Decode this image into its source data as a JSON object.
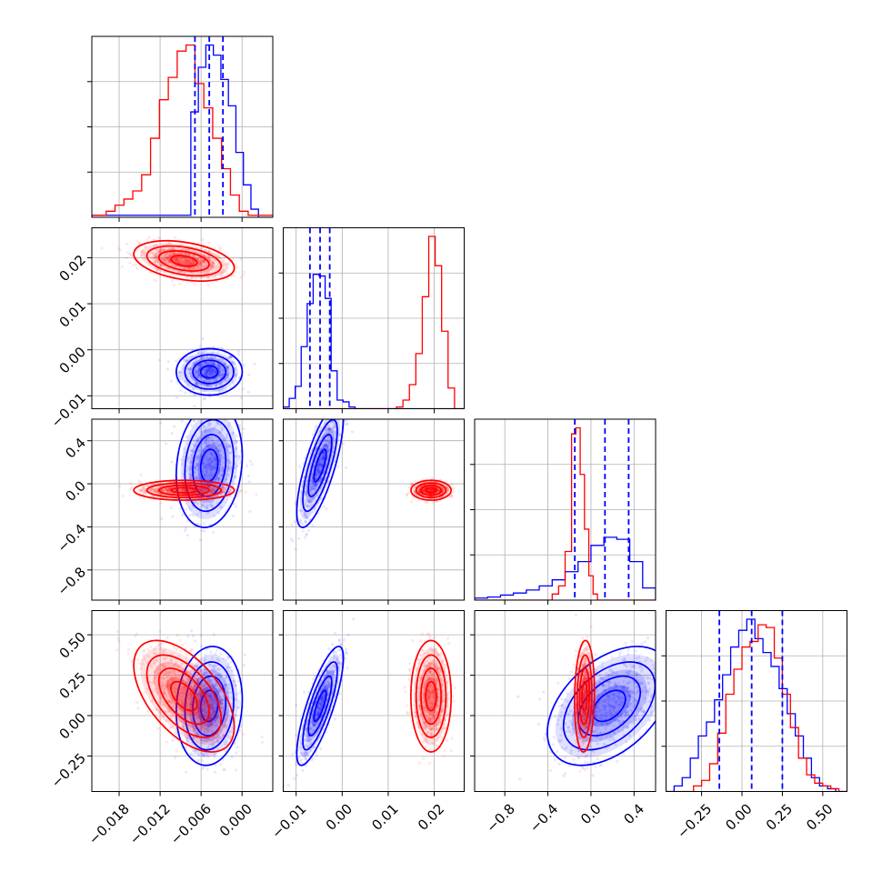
{
  "chart_data": {
    "type": "corner",
    "title": "",
    "grid": true,
    "colors": {
      "series_a": "#0000ff",
      "series_b": "#ff0000"
    },
    "params": [
      {
        "xlim": [
          -0.022,
          0.0045
        ],
        "ticks": [
          -0.018,
          -0.012,
          -0.006,
          0.0
        ],
        "tick_labels": [
          "−0.018",
          "−0.012",
          "−0.006",
          "0.000"
        ]
      },
      {
        "xlim": [
          -0.0128,
          0.0265
        ],
        "ticks": [
          -0.01,
          0.0,
          0.01,
          0.02
        ],
        "tick_labels": [
          "−0.01",
          "0.00",
          "0.01",
          "0.02"
        ]
      },
      {
        "xlim": [
          -1.08,
          0.6
        ],
        "ticks": [
          -0.8,
          -0.4,
          0.0,
          0.4
        ],
        "tick_labels": [
          "−0.8",
          "−0.4",
          "0.0",
          "0.4"
        ]
      },
      {
        "xlim": [
          -0.47,
          0.65
        ],
        "ticks": [
          -0.25,
          0.0,
          0.25,
          0.5
        ],
        "tick_labels": [
          "−0.25",
          "0.00",
          "0.25",
          "0.50"
        ]
      }
    ],
    "series": [
      {
        "name": "",
        "color": "#0000ff",
        "quantiles": [
          [
            -0.0069,
            -0.0048,
            -0.0028
          ],
          [
            -0.007,
            -0.0048,
            -0.0027
          ],
          [
            -0.15,
            0.13,
            0.35
          ],
          [
            -0.14,
            0.06,
            0.25
          ]
        ],
        "means": [
          -0.0048,
          -0.0048,
          0.17,
          0.06
        ],
        "sds": [
          0.0021,
          0.0022,
          0.25,
          0.16
        ],
        "corr": [
          [
            1,
            0.0,
            0.15,
            0.1
          ],
          [
            0.0,
            1,
            0.75,
            0.8
          ],
          [
            0.15,
            0.75,
            1,
            0.45
          ],
          [
            0.1,
            0.8,
            0.45,
            1
          ]
        ],
        "hist": [
          {
            "edges": [
              -0.022,
              -0.0075,
              -0.0064,
              -0.0053,
              -0.0042,
              -0.0031,
              -0.002,
              -0.0009,
              0.0002,
              0.0013,
              0.0024,
              0.0045
            ],
            "counts": [
              0.01,
              0.52,
              0.74,
              0.85,
              0.8,
              0.68,
              0.55,
              0.32,
              0.16,
              0.04,
              0.0
            ]
          },
          {
            "edges": [
              -0.0128,
              -0.0115,
              -0.0102,
              -0.0089,
              -0.0076,
              -0.0063,
              -0.005,
              -0.0037,
              -0.0024,
              -0.0011,
              0.0002,
              0.0015,
              0.0028,
              0.0265
            ],
            "counts": [
              0.01,
              0.06,
              0.13,
              0.36,
              0.61,
              0.78,
              0.77,
              0.64,
              0.22,
              0.05,
              0.04,
              0.01,
              0.0
            ]
          },
          {
            "edges": [
              -1.08,
              -0.96,
              -0.84,
              -0.72,
              -0.6,
              -0.48,
              -0.36,
              -0.24,
              -0.12,
              0.0,
              0.12,
              0.24,
              0.36,
              0.48,
              0.6
            ],
            "counts": [
              0.01,
              0.015,
              0.025,
              0.035,
              0.05,
              0.07,
              0.1,
              0.14,
              0.19,
              0.27,
              0.31,
              0.3,
              0.19,
              0.06
            ]
          },
          {
            "edges": [
              -0.47,
              -0.42,
              -0.37,
              -0.32,
              -0.27,
              -0.22,
              -0.17,
              -0.12,
              -0.07,
              -0.02,
              0.03,
              0.08,
              0.13,
              0.18,
              0.23,
              0.28,
              0.33,
              0.38,
              0.43,
              0.48,
              0.53,
              0.58,
              0.65
            ],
            "counts": [
              0.0,
              0.02,
              0.05,
              0.12,
              0.2,
              0.25,
              0.33,
              0.42,
              0.52,
              0.58,
              0.62,
              0.55,
              0.5,
              0.45,
              0.37,
              0.28,
              0.2,
              0.12,
              0.05,
              0.02,
              0.01,
              0.0
            ]
          }
        ]
      },
      {
        "name": "",
        "color": "#ff0000",
        "means": [
          -0.0085,
          0.0193,
          -0.06,
          0.12
        ],
        "sds": [
          0.0032,
          0.0019,
          0.04,
          0.15
        ],
        "corr": [
          [
            1,
            -0.35,
            0.0,
            -0.55
          ],
          [
            -0.35,
            1,
            0.0,
            0.0
          ],
          [
            0.0,
            0.0,
            1,
            0.1
          ],
          [
            -0.55,
            0.0,
            0.1,
            1
          ]
        ],
        "hist": [
          {
            "edges": [
              -0.022,
              -0.0199,
              -0.0186,
              -0.0173,
              -0.016,
              -0.0147,
              -0.0134,
              -0.0121,
              -0.0108,
              -0.0095,
              -0.0082,
              -0.0069,
              -0.0056,
              -0.0043,
              -0.003,
              -0.0017,
              -0.0004,
              0.0009,
              0.0045
            ],
            "counts": [
              0.01,
              0.03,
              0.06,
              0.09,
              0.13,
              0.21,
              0.39,
              0.58,
              0.69,
              0.82,
              0.85,
              0.66,
              0.54,
              0.39,
              0.24,
              0.11,
              0.03,
              0.01
            ]
          },
          {
            "edges": [
              -0.0128,
              0.0118,
              0.0132,
              0.0146,
              0.016,
              0.0174,
              0.0188,
              0.0202,
              0.0216,
              0.023,
              0.0244,
              0.0265
            ],
            "counts": [
              0.0,
              0.01,
              0.05,
              0.14,
              0.32,
              0.65,
              1.0,
              0.83,
              0.45,
              0.12,
              0.0
            ]
          },
          {
            "edges": [
              -1.08,
              -0.36,
              -0.3,
              -0.24,
              -0.18,
              -0.14,
              -0.1,
              -0.06,
              -0.02,
              0.02,
              0.06,
              0.6
            ],
            "counts": [
              0.0,
              0.03,
              0.07,
              0.24,
              0.82,
              0.85,
              0.62,
              0.35,
              0.12,
              0.03,
              0.0
            ]
          },
          {
            "edges": [
              -0.47,
              -0.3,
              -0.25,
              -0.2,
              -0.15,
              -0.1,
              -0.05,
              0.0,
              0.05,
              0.1,
              0.15,
              0.2,
              0.25,
              0.3,
              0.35,
              0.4,
              0.45,
              0.5,
              0.55,
              0.6,
              0.65
            ],
            "counts": [
              0.0,
              0.02,
              0.04,
              0.1,
              0.21,
              0.35,
              0.44,
              0.52,
              0.54,
              0.6,
              0.59,
              0.48,
              0.35,
              0.23,
              0.12,
              0.06,
              0.03,
              0.02,
              0.01,
              0.0
            ]
          }
        ]
      }
    ]
  }
}
